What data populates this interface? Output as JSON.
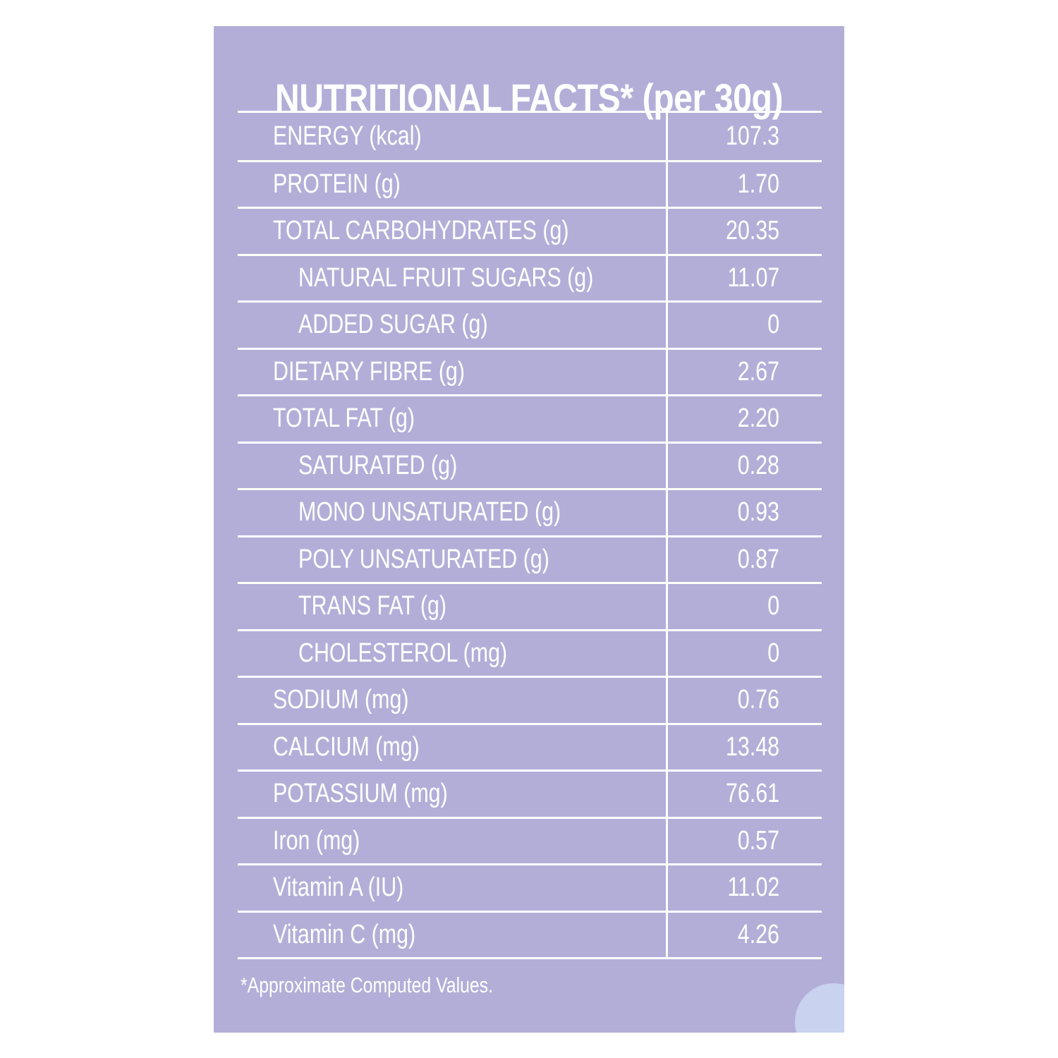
{
  "title": "NUTRITIONAL FACTS* (per 30g)",
  "rows": [
    {
      "label": "ENERGY (kcal)",
      "value": "107.3",
      "sub": false
    },
    {
      "label": "PROTEIN (g)",
      "value": "1.70",
      "sub": false
    },
    {
      "label": "TOTAL CARBOHYDRATES (g)",
      "value": "20.35",
      "sub": false
    },
    {
      "label": "NATURAL FRUIT SUGARS (g)",
      "value": "11.07",
      "sub": true
    },
    {
      "label": "ADDED SUGAR (g)",
      "value": "0",
      "sub": true
    },
    {
      "label": "DIETARY FIBRE (g)",
      "value": "2.67",
      "sub": false
    },
    {
      "label": "TOTAL FAT (g)",
      "value": "2.20",
      "sub": false
    },
    {
      "label": "SATURATED (g)",
      "value": "0.28",
      "sub": true
    },
    {
      "label": "MONO UNSATURATED (g)",
      "value": "0.93",
      "sub": true
    },
    {
      "label": "POLY UNSATURATED (g)",
      "value": "0.87",
      "sub": true
    },
    {
      "label": "TRANS FAT (g)",
      "value": "0",
      "sub": true
    },
    {
      "label": "CHOLESTEROL (mg)",
      "value": "0",
      "sub": true
    },
    {
      "label": "SODIUM (mg)",
      "value": "0.76",
      "sub": false
    },
    {
      "label": "CALCIUM (mg)",
      "value": "13.48",
      "sub": false
    },
    {
      "label": "POTASSIUM (mg)",
      "value": "76.61",
      "sub": false
    },
    {
      "label": "Iron (mg)",
      "value": "0.57",
      "sub": false
    },
    {
      "label": "Vitamin A (IU)",
      "value": "11.02",
      "sub": false
    },
    {
      "label": "Vitamin C (mg)",
      "value": "4.26",
      "sub": false
    }
  ],
  "footnote": "*Approximate Computed Values.",
  "colors": {
    "panel_background": "#b3aed8",
    "text": "#ffffff",
    "corner_accent": "#c9d2ee"
  }
}
